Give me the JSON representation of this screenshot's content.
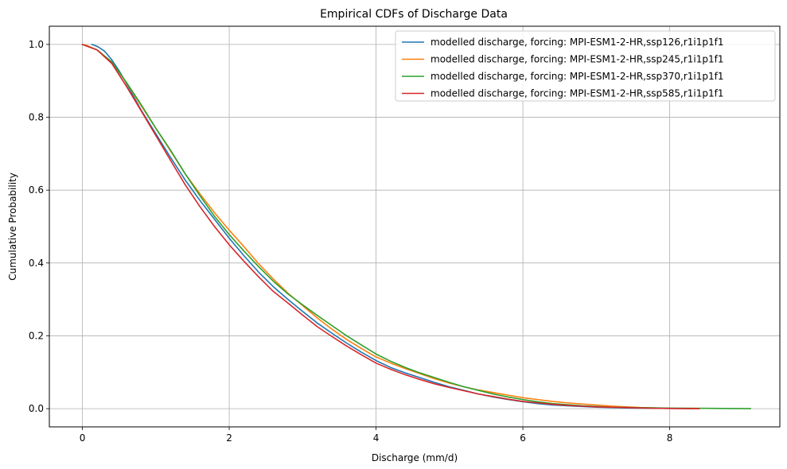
{
  "chart_data": {
    "type": "line",
    "title": "Empirical CDFs of Discharge Data",
    "xlabel": "Discharge (mm/d)",
    "ylabel": "Cumulative Probability",
    "xlim": [
      -0.45,
      9.5
    ],
    "ylim": [
      -0.05,
      1.05
    ],
    "xticks": [
      0,
      2,
      4,
      6,
      8
    ],
    "xtick_labels": [
      "0",
      "2",
      "4",
      "6",
      "8"
    ],
    "yticks": [
      0.0,
      0.2,
      0.4,
      0.6,
      0.8,
      1.0
    ],
    "ytick_labels": [
      "0.0",
      "0.2",
      "0.4",
      "0.6",
      "0.8",
      "1.0"
    ],
    "grid": true,
    "legend_position": "top-right",
    "series": [
      {
        "name": "modelled discharge, forcing: MPI-ESM1-2-HR,ssp126,r1i1p1f1",
        "color": "#1f77b4",
        "x": [
          0.13,
          0.2,
          0.3,
          0.4,
          0.5,
          0.6,
          0.8,
          1.0,
          1.2,
          1.4,
          1.6,
          1.8,
          2.0,
          2.2,
          2.4,
          2.6,
          2.8,
          3.0,
          3.2,
          3.4,
          3.6,
          3.8,
          4.0,
          4.2,
          4.4,
          4.6,
          4.8,
          5.0,
          5.2,
          5.4,
          5.6,
          5.8,
          6.0,
          6.2,
          6.4,
          6.6,
          6.8,
          7.0,
          7.2,
          7.4,
          7.6,
          7.8,
          8.0,
          8.3
        ],
        "y": [
          1.0,
          0.995,
          0.982,
          0.958,
          0.928,
          0.893,
          0.82,
          0.755,
          0.69,
          0.628,
          0.572,
          0.52,
          0.468,
          0.42,
          0.375,
          0.335,
          0.3,
          0.267,
          0.235,
          0.207,
          0.18,
          0.155,
          0.132,
          0.113,
          0.098,
          0.085,
          0.072,
          0.06,
          0.05,
          0.04,
          0.032,
          0.025,
          0.019,
          0.014,
          0.01,
          0.008,
          0.006,
          0.004,
          0.003,
          0.002,
          0.0015,
          0.001,
          0.0005,
          0.0
        ]
      },
      {
        "name": "modelled discharge, forcing: MPI-ESM1-2-HR,ssp245,r1i1p1f1",
        "color": "#ff7f0e",
        "x": [
          0.05,
          0.2,
          0.4,
          0.6,
          0.8,
          1.0,
          1.2,
          1.4,
          1.6,
          1.8,
          2.0,
          2.2,
          2.4,
          2.6,
          2.8,
          3.0,
          3.2,
          3.4,
          3.6,
          3.8,
          4.0,
          4.2,
          4.4,
          4.6,
          4.8,
          5.0,
          5.2,
          5.4,
          5.6,
          5.8,
          6.0,
          6.2,
          6.4,
          6.6,
          6.8,
          7.0,
          7.2,
          7.4,
          7.6,
          7.8,
          8.0,
          8.4
        ],
        "y": [
          0.998,
          0.985,
          0.952,
          0.895,
          0.832,
          0.77,
          0.708,
          0.645,
          0.59,
          0.538,
          0.49,
          0.445,
          0.398,
          0.356,
          0.317,
          0.283,
          0.249,
          0.218,
          0.19,
          0.165,
          0.142,
          0.125,
          0.11,
          0.096,
          0.082,
          0.07,
          0.06,
          0.051,
          0.044,
          0.037,
          0.03,
          0.025,
          0.02,
          0.016,
          0.013,
          0.01,
          0.007,
          0.005,
          0.003,
          0.002,
          0.001,
          0.0
        ]
      },
      {
        "name": "modelled discharge, forcing: MPI-ESM1-2-HR,ssp370,r1i1p1f1",
        "color": "#2ca02c",
        "x": [
          0.0,
          0.2,
          0.4,
          0.6,
          0.8,
          1.0,
          1.2,
          1.4,
          1.6,
          1.8,
          2.0,
          2.2,
          2.4,
          2.6,
          2.8,
          3.0,
          3.2,
          3.4,
          3.6,
          3.8,
          4.0,
          4.2,
          4.4,
          4.6,
          4.8,
          5.0,
          5.2,
          5.4,
          5.6,
          5.8,
          6.0,
          6.2,
          6.4,
          6.6,
          6.8,
          7.0,
          7.2,
          7.5,
          8.0,
          8.5,
          9.1
        ],
        "y": [
          1.0,
          0.985,
          0.952,
          0.896,
          0.835,
          0.77,
          0.71,
          0.645,
          0.585,
          0.528,
          0.478,
          0.433,
          0.39,
          0.35,
          0.315,
          0.285,
          0.256,
          0.228,
          0.2,
          0.175,
          0.15,
          0.13,
          0.113,
          0.098,
          0.085,
          0.072,
          0.06,
          0.05,
          0.04,
          0.032,
          0.025,
          0.019,
          0.014,
          0.011,
          0.008,
          0.006,
          0.004,
          0.003,
          0.0015,
          0.001,
          0.0
        ]
      },
      {
        "name": "modelled discharge, forcing: MPI-ESM1-2-HR,ssp585,r1i1p1f1",
        "color": "#d62728",
        "x": [
          0.0,
          0.2,
          0.4,
          0.6,
          0.8,
          1.0,
          1.2,
          1.4,
          1.6,
          1.8,
          2.0,
          2.2,
          2.4,
          2.6,
          2.8,
          3.0,
          3.2,
          3.4,
          3.6,
          3.8,
          4.0,
          4.2,
          4.4,
          4.6,
          4.8,
          5.0,
          5.2,
          5.4,
          5.6,
          5.8,
          6.0,
          6.2,
          6.4,
          6.6,
          6.8,
          7.0,
          7.2,
          7.4,
          7.6,
          7.8,
          8.0,
          8.4
        ],
        "y": [
          1.0,
          0.985,
          0.948,
          0.885,
          0.818,
          0.75,
          0.682,
          0.615,
          0.555,
          0.5,
          0.45,
          0.405,
          0.362,
          0.322,
          0.29,
          0.257,
          0.225,
          0.198,
          0.172,
          0.148,
          0.125,
          0.108,
          0.093,
          0.08,
          0.068,
          0.058,
          0.049,
          0.04,
          0.033,
          0.026,
          0.02,
          0.016,
          0.012,
          0.009,
          0.007,
          0.005,
          0.004,
          0.003,
          0.002,
          0.001,
          0.0005,
          0.0
        ]
      }
    ]
  }
}
